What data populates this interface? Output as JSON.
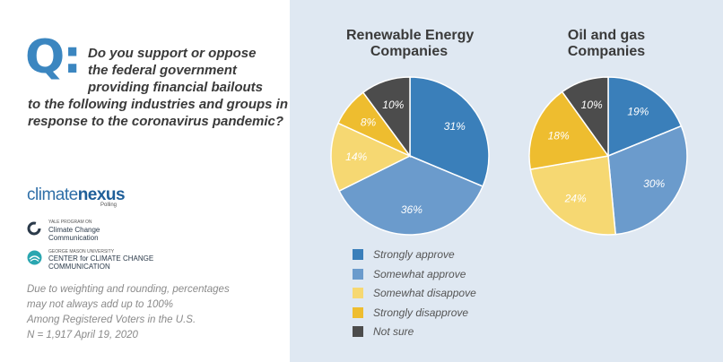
{
  "question": {
    "q_label": "Q:",
    "lines": [
      "Do you support or oppose",
      "the federal government",
      "providing financial bailouts",
      "to the following industries and groups in",
      "response to the coronavirus pandemic?"
    ]
  },
  "logos": {
    "climatenexus": {
      "part1": "climate",
      "part2": "nexus",
      "sub": "Polling"
    },
    "yale": {
      "small": "YALE PROGRAM ON",
      "line1": "Climate Change",
      "line2": "Communication"
    },
    "gmu": {
      "small": "GEORGE MASON UNIVERSITY",
      "line1": "CENTER for CLIMATE CHANGE",
      "line2": "COMMUNICATION"
    }
  },
  "notes": [
    "Due to weighting and rounding, percentages",
    "may not always add up to 100%",
    "Among Registered Voters in the U.S.",
    "N = 1,917 April 19, 2020"
  ],
  "colors": {
    "accent": "#3b86c0",
    "panel_bg": "#dfe8f2"
  },
  "chart_data": [
    {
      "type": "pie",
      "title_lines": [
        "Renewable Energy",
        "Companies"
      ],
      "categories": [
        "Strongly approve",
        "Somewhat approve",
        "Somewhat disappove",
        "Strongly disapprove",
        "Not sure"
      ],
      "values": [
        31,
        36,
        14,
        8,
        10
      ],
      "labels": [
        "31%",
        "36%",
        "14%",
        "8%",
        "10%"
      ]
    },
    {
      "type": "pie",
      "title_lines": [
        "Oil and gas",
        "Companies"
      ],
      "categories": [
        "Strongly approve",
        "Somewhat approve",
        "Somewhat disappove",
        "Strongly disapprove",
        "Not sure"
      ],
      "values": [
        19,
        30,
        24,
        18,
        10
      ],
      "labels": [
        "19%",
        "30%",
        "24%",
        "18%",
        "10%"
      ]
    }
  ],
  "legend": {
    "items": [
      {
        "label": "Strongly approve",
        "color": "#3a7fba"
      },
      {
        "label": "Somewhat approve",
        "color": "#6b9bcc"
      },
      {
        "label": "Somewhat disappove",
        "color": "#f6d872"
      },
      {
        "label": "Strongly disapprove",
        "color": "#eebd2f"
      },
      {
        "label": "Not sure",
        "color": "#4c4c4c"
      }
    ]
  }
}
